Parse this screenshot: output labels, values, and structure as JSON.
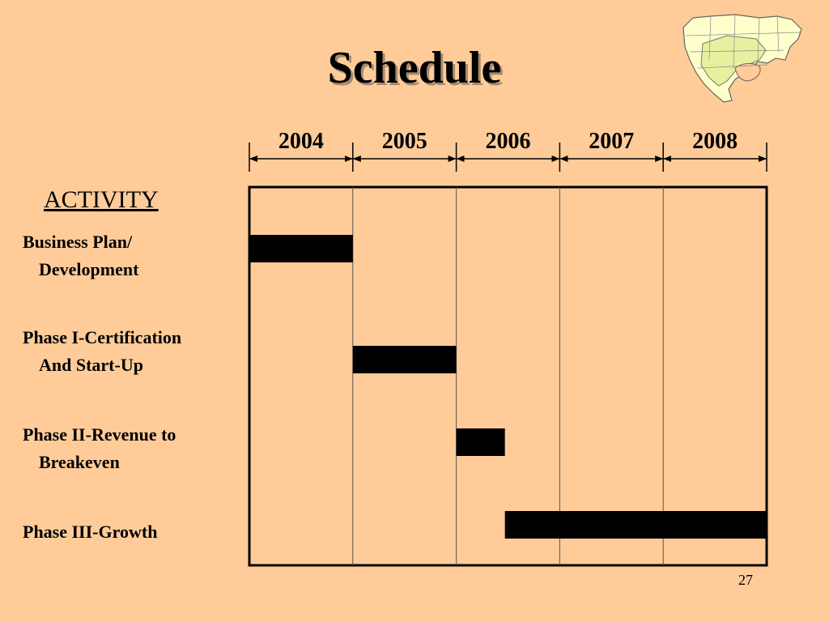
{
  "slide": {
    "title": "Schedule",
    "activity_heading": "ACTIVITY",
    "slide_number": "27"
  },
  "colors": {
    "background": "#FFCC99",
    "bar": "#000000",
    "map_land": "#FFFFCC",
    "map_highlight": "#E8F0A0",
    "map_lines": "#666666"
  },
  "icons": [
    "north-america-map-icon"
  ],
  "activities": [
    {
      "line1": "Business Plan/",
      "line2": "Development"
    },
    {
      "line1": "Phase I-Certification",
      "line2": "And Start-Up"
    },
    {
      "line1": "Phase II-Revenue to",
      "line2": "Breakeven"
    },
    {
      "line1": "Phase III-Growth",
      "line2": ""
    }
  ],
  "chart_data": {
    "type": "gantt",
    "title": "Schedule",
    "years": [
      "2004",
      "2005",
      "2006",
      "2007",
      "2008"
    ],
    "xlim": [
      2004,
      2009
    ],
    "grid": true,
    "tasks": [
      {
        "name": "Business Plan/ Development",
        "start": 2004.0,
        "end": 2005.0
      },
      {
        "name": "Phase I-Certification And Start-Up",
        "start": 2005.0,
        "end": 2006.0
      },
      {
        "name": "Phase II-Revenue to Breakeven",
        "start": 2006.0,
        "end": 2006.47
      },
      {
        "name": "Phase III-Growth",
        "start": 2006.47,
        "end": 2009.0
      }
    ]
  }
}
